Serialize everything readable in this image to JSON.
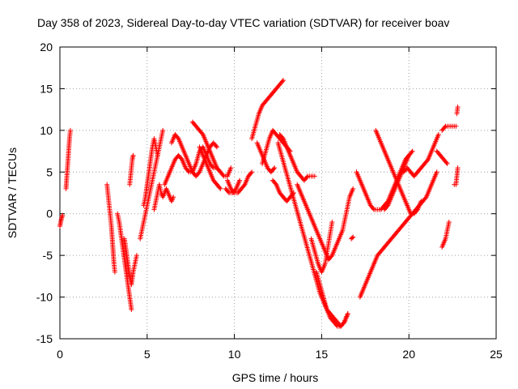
{
  "chart_data": {
    "type": "scatter",
    "title": "Day 358 of 2023, Sidereal Day-to-day VTEC variation (SDTVAR) for receiver boav",
    "xlabel": "GPS time / hours",
    "ylabel": "SDTVAR / TECUs",
    "xlim": [
      0,
      25
    ],
    "ylim": [
      -15,
      20
    ],
    "xticks": [
      0,
      5,
      10,
      15,
      20,
      25
    ],
    "yticks": [
      -15,
      -10,
      -5,
      0,
      5,
      10,
      15,
      20
    ],
    "grid": true,
    "marker": "+",
    "color": "#ff0000",
    "series": [
      {
        "name": "s1",
        "x": [
          0.0,
          0.05,
          0.1,
          0.15
        ],
        "y": [
          -1.5,
          -1.0,
          -0.5,
          -0.2
        ]
      },
      {
        "name": "s2",
        "x": [
          0.35,
          0.4,
          0.45,
          0.5,
          0.55,
          0.6
        ],
        "y": [
          3.0,
          4.5,
          6.0,
          7.5,
          9.0,
          10.0
        ]
      },
      {
        "name": "s3",
        "x": [
          2.7,
          2.75,
          2.8,
          2.85,
          2.9,
          2.95,
          3.0,
          3.05,
          3.1,
          3.15
        ],
        "y": [
          3.5,
          2.5,
          1.5,
          0.5,
          -0.5,
          -1.5,
          -3.0,
          -4.5,
          -6.0,
          -7.0
        ]
      },
      {
        "name": "s4",
        "x": [
          3.3,
          3.4,
          3.5,
          3.6,
          3.7,
          3.8,
          3.9,
          4.0,
          4.1
        ],
        "y": [
          0.0,
          -1.0,
          -2.5,
          -4.0,
          -5.5,
          -7.0,
          -8.5,
          -10.0,
          -11.5
        ]
      },
      {
        "name": "s5",
        "x": [
          3.7,
          3.8,
          3.9,
          4.0,
          4.1,
          4.2,
          4.3,
          4.4
        ],
        "y": [
          -3.0,
          -4.5,
          -6.0,
          -7.5,
          -8.5,
          -7.0,
          -6.0,
          -5.0
        ]
      },
      {
        "name": "s6",
        "x": [
          4.0,
          4.05,
          4.1,
          4.15,
          4.2
        ],
        "y": [
          3.5,
          4.5,
          5.5,
          6.5,
          7.0
        ]
      },
      {
        "name": "s7",
        "x": [
          4.6,
          4.7,
          4.8,
          4.9,
          5.0,
          5.1,
          5.2,
          5.3,
          5.4,
          5.5,
          5.6,
          5.7,
          5.8,
          5.9
        ],
        "y": [
          -3.0,
          -2.0,
          -1.0,
          0.0,
          1.0,
          2.0,
          3.0,
          4.0,
          5.0,
          6.0,
          7.0,
          8.0,
          9.0,
          10.0
        ]
      },
      {
        "name": "s8",
        "x": [
          4.8,
          4.9,
          5.0,
          5.1,
          5.2,
          5.3,
          5.4,
          5.5,
          5.6
        ],
        "y": [
          1.0,
          2.0,
          3.5,
          5.0,
          6.5,
          8.0,
          9.0,
          8.0,
          7.0
        ]
      },
      {
        "name": "s9",
        "x": [
          5.4,
          5.5,
          5.6,
          5.7,
          5.8,
          5.9,
          6.0,
          6.1,
          6.2,
          6.3,
          6.4,
          6.5
        ],
        "y": [
          0.5,
          1.5,
          2.5,
          3.5,
          2.5,
          2.0,
          2.5,
          3.0,
          2.5,
          2.0,
          1.5,
          2.0
        ]
      },
      {
        "name": "s10",
        "x": [
          6.0,
          6.2,
          6.4,
          6.6,
          6.8,
          7.0,
          7.2,
          7.4,
          7.6,
          7.8,
          8.0,
          8.2,
          8.4,
          8.6,
          8.8,
          9.0,
          9.2
        ],
        "y": [
          3.5,
          4.5,
          5.5,
          6.5,
          7.0,
          6.5,
          5.5,
          5.0,
          5.0,
          6.0,
          7.5,
          8.0,
          7.0,
          6.0,
          5.5,
          5.5,
          5.0
        ]
      },
      {
        "name": "s11",
        "x": [
          6.4,
          6.6,
          6.8,
          7.0,
          7.2,
          7.4,
          7.6,
          7.8,
          8.0,
          8.2,
          8.4,
          8.6,
          8.8,
          9.0
        ],
        "y": [
          8.5,
          9.5,
          9.0,
          8.0,
          7.0,
          6.0,
          5.0,
          4.5,
          5.0,
          6.0,
          7.0,
          8.0,
          8.5,
          8.0
        ]
      },
      {
        "name": "s12",
        "x": [
          7.6,
          7.8,
          8.0,
          8.2,
          8.4,
          8.6,
          8.8,
          9.0,
          9.2,
          9.4,
          9.6,
          9.8
        ],
        "y": [
          11.0,
          10.5,
          10.0,
          9.5,
          8.5,
          7.5,
          6.5,
          5.5,
          5.0,
          4.5,
          4.5,
          5.5
        ]
      },
      {
        "name": "s13",
        "x": [
          8.0,
          8.2,
          8.4,
          8.6,
          8.8,
          9.0,
          9.2
        ],
        "y": [
          8.0,
          7.0,
          6.0,
          5.0,
          4.0,
          3.5,
          3.0
        ]
      },
      {
        "name": "s14",
        "x": [
          9.6,
          9.8,
          10.0,
          10.2,
          10.4,
          10.6,
          10.8,
          11.0
        ],
        "y": [
          4.0,
          3.0,
          2.5,
          2.5,
          3.0,
          3.5,
          4.5,
          5.0
        ]
      },
      {
        "name": "s15",
        "x": [
          9.5,
          9.7,
          9.9,
          10.1,
          10.3
        ],
        "y": [
          3.0,
          2.5,
          2.5,
          3.0,
          4.0
        ]
      },
      {
        "name": "s16",
        "x": [
          11.0,
          11.2,
          11.4,
          11.6,
          11.8,
          12.0,
          12.2,
          12.4,
          12.6,
          12.8
        ],
        "y": [
          9.0,
          10.5,
          12.0,
          13.0,
          13.5,
          14.0,
          14.5,
          15.0,
          15.5,
          16.0
        ]
      },
      {
        "name": "s17",
        "x": [
          11.3,
          11.5,
          11.7,
          11.9,
          12.1,
          12.3
        ],
        "y": [
          8.5,
          7.5,
          6.5,
          5.5,
          5.0,
          5.5
        ]
      },
      {
        "name": "s18",
        "x": [
          11.6,
          11.8,
          12.0,
          12.2,
          12.4,
          12.6,
          12.8,
          13.0,
          13.2
        ],
        "y": [
          6.0,
          7.5,
          9.0,
          10.0,
          9.5,
          9.0,
          8.5,
          8.0,
          7.5
        ]
      },
      {
        "name": "s19",
        "x": [
          12.2,
          12.4,
          12.6,
          12.8,
          13.0,
          13.2,
          13.4
        ],
        "y": [
          4.0,
          3.5,
          2.5,
          2.0,
          1.5,
          2.0,
          2.5
        ]
      },
      {
        "name": "s20",
        "x": [
          12.6,
          12.8,
          13.0,
          13.2,
          13.4,
          13.6,
          13.8,
          14.0,
          14.2,
          14.4,
          14.6
        ],
        "y": [
          9.5,
          9.0,
          8.0,
          7.0,
          6.0,
          5.0,
          4.5,
          4.0,
          4.5,
          4.5,
          4.5
        ]
      },
      {
        "name": "s21",
        "x": [
          12.5,
          12.7,
          12.9,
          13.1,
          13.3,
          13.5,
          13.7,
          13.9,
          14.1,
          14.3,
          14.5,
          14.7,
          14.9,
          15.1,
          15.3,
          15.5,
          15.7,
          15.9,
          16.1,
          16.3,
          16.5
        ],
        "y": [
          8.5,
          7.0,
          5.5,
          4.0,
          2.5,
          1.0,
          -0.5,
          -2.0,
          -3.5,
          -5.0,
          -6.5,
          -8.0,
          -9.5,
          -10.5,
          -11.5,
          -12.0,
          -12.5,
          -13.0,
          -13.5,
          -13.0,
          -12.0
        ]
      },
      {
        "name": "s22",
        "x": [
          13.6,
          13.8,
          14.0,
          14.2,
          14.4,
          14.6,
          14.8,
          15.0,
          15.2,
          15.4,
          15.6,
          15.8,
          16.0,
          16.2,
          16.4,
          16.6,
          16.8
        ],
        "y": [
          3.5,
          2.5,
          1.5,
          0.5,
          -0.5,
          -1.5,
          -2.5,
          -3.5,
          -4.5,
          -5.5,
          -5.0,
          -4.0,
          -3.0,
          -2.0,
          0.0,
          2.0,
          3.0
        ]
      },
      {
        "name": "s23",
        "x": [
          14.4,
          14.6,
          14.8,
          15.0,
          15.2,
          15.4,
          15.6
        ],
        "y": [
          -3.0,
          -4.5,
          -6.0,
          -7.0,
          -6.0,
          -3.5,
          -1.0
        ]
      },
      {
        "name": "s24",
        "x": [
          14.7,
          14.9,
          15.1,
          15.3,
          15.5,
          15.7,
          15.9,
          16.1,
          16.3,
          16.5
        ],
        "y": [
          -7.0,
          -8.5,
          -10.0,
          -11.5,
          -12.5,
          -13.0,
          -13.5,
          -13.5,
          -13.0,
          -12.0
        ]
      },
      {
        "name": "s25",
        "x": [
          16.7,
          16.8
        ],
        "y": [
          -3.0,
          -2.8
        ]
      },
      {
        "name": "s26",
        "x": [
          17.2,
          17.4,
          17.6,
          17.8,
          18.0,
          18.2,
          18.4,
          18.6,
          18.8,
          19.0,
          19.2,
          19.4,
          19.6,
          19.8,
          20.0,
          20.2,
          20.4,
          20.6,
          20.8,
          21.0,
          21.2,
          21.4,
          21.6
        ],
        "y": [
          -10.0,
          -9.0,
          -8.0,
          -7.0,
          -6.0,
          -5.0,
          -4.5,
          -4.0,
          -3.5,
          -3.0,
          -2.5,
          -2.0,
          -1.5,
          -1.0,
          -0.5,
          0.0,
          0.5,
          1.0,
          1.5,
          2.0,
          3.0,
          4.0,
          5.0
        ]
      },
      {
        "name": "s27",
        "x": [
          17.0,
          17.2,
          17.4,
          17.6,
          17.8,
          18.0,
          18.2,
          18.4,
          18.6,
          18.8,
          19.0,
          19.2,
          19.4,
          19.6,
          19.8,
          20.0,
          20.2
        ],
        "y": [
          5.0,
          4.0,
          3.0,
          2.0,
          1.0,
          0.5,
          0.5,
          0.5,
          1.0,
          1.5,
          2.5,
          3.5,
          4.5,
          5.5,
          6.5,
          7.0,
          7.5
        ]
      },
      {
        "name": "s28",
        "x": [
          18.1,
          18.3,
          18.5,
          18.7,
          18.9,
          19.1,
          19.3,
          19.5,
          19.7,
          19.9,
          20.1,
          20.3,
          20.5,
          20.7
        ],
        "y": [
          10.0,
          9.0,
          8.0,
          7.0,
          6.0,
          5.0,
          4.0,
          3.0,
          2.0,
          1.0,
          0.0,
          0.0,
          0.5,
          1.5
        ]
      },
      {
        "name": "s29",
        "x": [
          18.6,
          18.8,
          19.0,
          19.2,
          19.4,
          19.6,
          19.8,
          20.0
        ],
        "y": [
          0.5,
          1.0,
          2.0,
          3.0,
          4.0,
          5.0,
          6.0,
          7.0
        ]
      },
      {
        "name": "s30",
        "x": [
          19.7,
          19.9,
          20.1,
          20.3,
          20.5,
          20.7,
          20.9,
          21.1,
          21.3,
          21.5,
          21.7
        ],
        "y": [
          5.0,
          5.5,
          5.0,
          4.5,
          5.0,
          5.5,
          6.0,
          6.5,
          7.5,
          8.5,
          9.5
        ]
      },
      {
        "name": "s31",
        "x": [
          21.6,
          21.8,
          22.0,
          22.2
        ],
        "y": [
          7.5,
          7.0,
          6.5,
          6.0
        ]
      },
      {
        "name": "s32",
        "x": [
          21.9,
          22.0,
          22.1,
          22.2,
          22.3
        ],
        "y": [
          -4.0,
          -3.5,
          -3.0,
          -2.0,
          -1.0
        ]
      },
      {
        "name": "s33",
        "x": [
          21.9,
          22.1,
          22.3,
          22.5,
          22.7
        ],
        "y": [
          10.0,
          10.5,
          10.5,
          10.5,
          10.5
        ]
      },
      {
        "name": "s34",
        "x": [
          22.6,
          22.7,
          22.8
        ],
        "y": [
          3.5,
          3.5,
          5.5
        ]
      },
      {
        "name": "s35",
        "x": [
          22.75,
          22.8
        ],
        "y": [
          12.0,
          12.8
        ]
      }
    ]
  }
}
